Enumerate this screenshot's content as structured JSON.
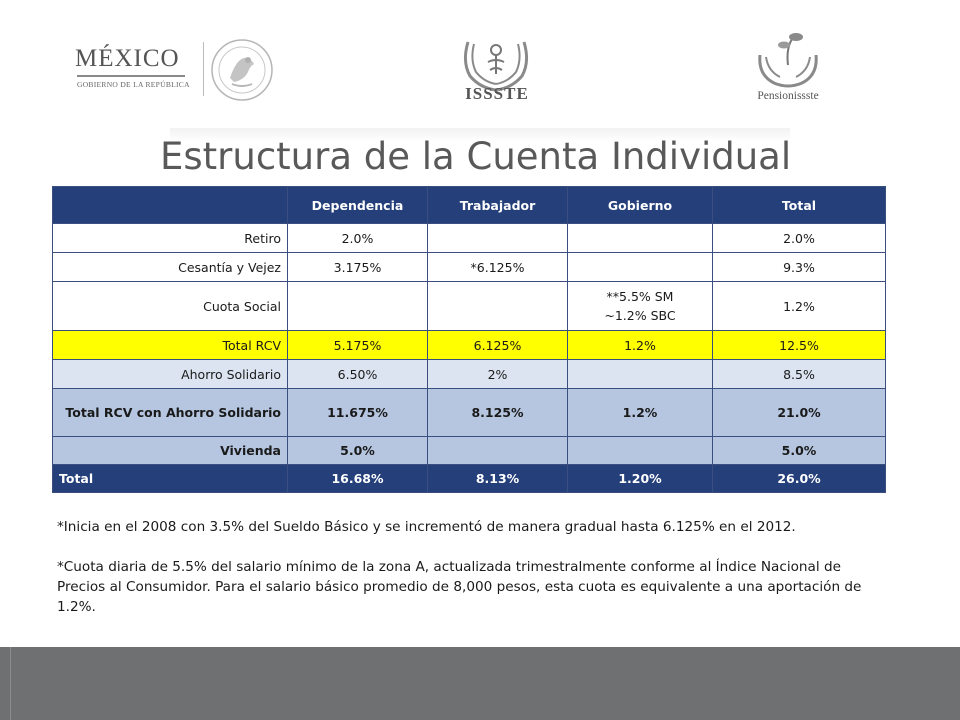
{
  "header": {
    "mexico_title": "MÉXICO",
    "mexico_subtitle": "GOBIERNO DE LA REPÚBLICA",
    "issste_label": "ISSSTE",
    "pensionissste_label": "Pensionissste"
  },
  "title": "Estructura de la Cuenta Individual",
  "table": {
    "headers": [
      "",
      "Dependencia",
      "Trabajador",
      "Gobierno",
      "Total"
    ],
    "rows": [
      [
        "Retiro",
        "2.0%",
        "",
        "",
        "2.0%"
      ],
      [
        "Cesantía y Vejez",
        "3.175%",
        "*6.125%",
        "",
        "9.3%"
      ],
      [
        "Cuota Social",
        "",
        "",
        "**5.5% SM|~1.2% SBC",
        "1.2%"
      ],
      [
        "Total RCV",
        "5.175%",
        "6.125%",
        "1.2%",
        "12.5%"
      ],
      [
        "Ahorro Solidario",
        "6.50%",
        "2%",
        "",
        "8.5%"
      ],
      [
        "Total RCV con Ahorro Solidario",
        "11.675%",
        "8.125%",
        "1.2%",
        "21.0%"
      ],
      [
        "Vivienda",
        "5.0%",
        "",
        "",
        "5.0%"
      ],
      [
        "Total",
        "16.68%",
        "8.13%",
        "1.20%",
        "26.0%"
      ]
    ],
    "cuota_social_line1": "**5.5% SM",
    "cuota_social_line2": "~1.2% SBC"
  },
  "notes": [
    "*Inicia en el 2008 con 3.5% del Sueldo Básico y se incrementó de manera gradual hasta 6.125% en el 2012.",
    "*Cuota diaria de 5.5% del salario mínimo de la zona A, actualizada trimestralmente conforme al Índice Nacional de Precios al Consumidor. Para el salario básico promedio de 8,000 pesos, esta cuota es equivalente a una aportación de 1.2%."
  ],
  "colors": {
    "header_blue": "#243f7a",
    "highlight_yellow": "#ffff00",
    "light_blue": "#dce4f1",
    "mid_blue": "#b6c6e1",
    "footer_gray": "#6f7072"
  }
}
